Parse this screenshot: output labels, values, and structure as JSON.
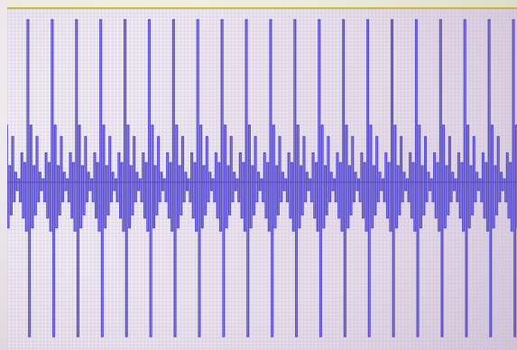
{
  "window": {
    "title": ""
  },
  "colors": {
    "background": "#ece6f0",
    "grid_line": "#c9bfd2",
    "waveform": "#5a4fd0",
    "center_line": "#6d6276",
    "top_rule": "#c6c23a"
  },
  "waveform": {
    "cycles_visible": 21,
    "peak_amplitude": 1.0,
    "secondary_amplitude": 0.25
  }
}
